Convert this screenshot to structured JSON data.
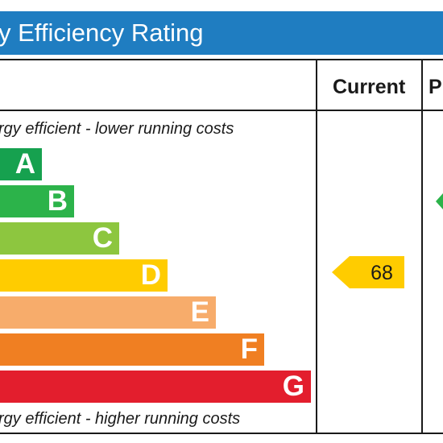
{
  "header": {
    "title": "y Efficiency Rating"
  },
  "columns": {
    "current": "Current",
    "potential": "P"
  },
  "notes": {
    "top": "rgy efficient - lower running costs",
    "bottom": "rgy efficient - higher running costs"
  },
  "colors": {
    "header_bg": "#1f7dc1",
    "A": "#16a14f",
    "B": "#2cb34a",
    "C": "#8dc63f",
    "D": "#ffcc00",
    "E": "#f7ac6b",
    "F": "#f07f22",
    "G": "#e31e2d"
  },
  "chart_data": {
    "type": "bar",
    "title": "y Efficiency Rating",
    "categories": [
      "A",
      "B",
      "C",
      "D",
      "E",
      "F",
      "G"
    ],
    "bands": [
      {
        "letter": "A",
        "color": "#16a14f"
      },
      {
        "letter": "B",
        "color": "#2cb34a"
      },
      {
        "letter": "C",
        "color": "#8dc63f"
      },
      {
        "letter": "D",
        "color": "#ffcc00"
      },
      {
        "letter": "E",
        "color": "#f7ac6b"
      },
      {
        "letter": "F",
        "color": "#f07f22"
      },
      {
        "letter": "G",
        "color": "#e31e2d"
      }
    ],
    "current": {
      "value": "68",
      "band": "D"
    },
    "potential": {
      "band": "B"
    }
  }
}
